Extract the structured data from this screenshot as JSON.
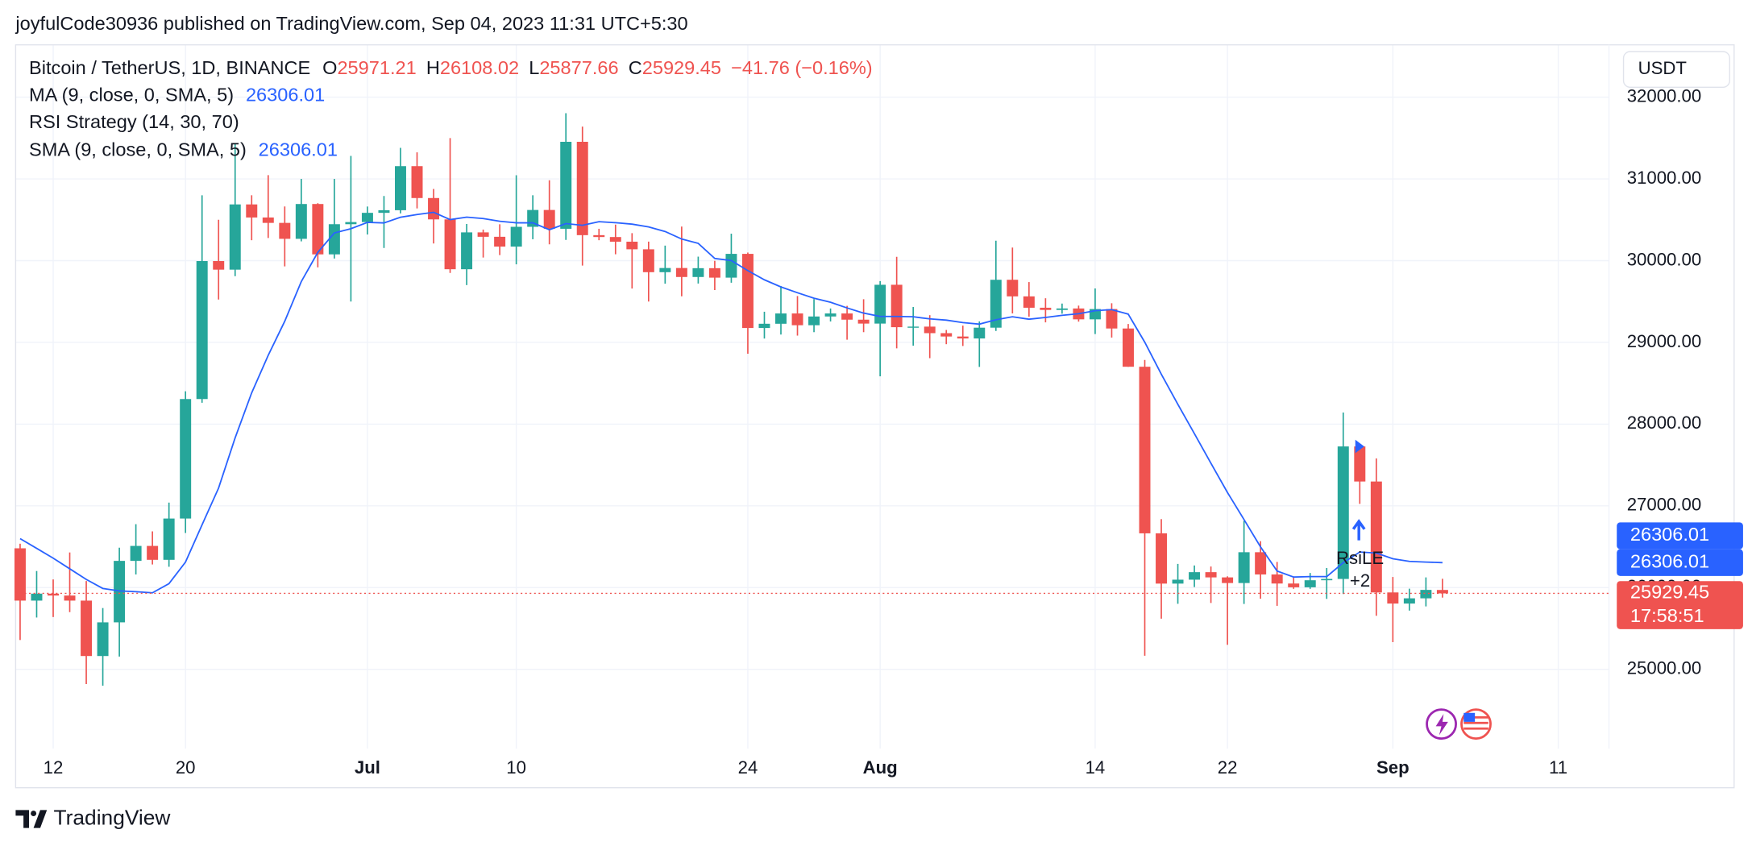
{
  "chart_data": {
    "type": "candlestick",
    "header": "joyfulCode30936 published on TradingView.com, Sep 04, 2023 11:31 UTC+5:30",
    "symbol": "Bitcoin / TetherUS, 1D, BINANCE",
    "ohlc_letters": [
      "O",
      "H",
      "L",
      "C"
    ],
    "change": "−41.76 (−0.16%)",
    "currency": "USDT",
    "countdown": "17:58:51",
    "brand": "TradingView",
    "up_color": "#26a69a",
    "down_color": "#ef5350",
    "x": [
      "2023-06-10",
      "2023-06-11",
      "2023-06-12",
      "2023-06-13",
      "2023-06-14",
      "2023-06-15",
      "2023-06-16",
      "2023-06-17",
      "2023-06-18",
      "2023-06-19",
      "2023-06-20",
      "2023-06-21",
      "2023-06-22",
      "2023-06-23",
      "2023-06-24",
      "2023-06-25",
      "2023-06-26",
      "2023-06-27",
      "2023-06-28",
      "2023-06-29",
      "2023-06-30",
      "2023-07-01",
      "2023-07-02",
      "2023-07-03",
      "2023-07-04",
      "2023-07-05",
      "2023-07-06",
      "2023-07-07",
      "2023-07-08",
      "2023-07-09",
      "2023-07-10",
      "2023-07-11",
      "2023-07-12",
      "2023-07-13",
      "2023-07-14",
      "2023-07-15",
      "2023-07-16",
      "2023-07-17",
      "2023-07-18",
      "2023-07-19",
      "2023-07-20",
      "2023-07-21",
      "2023-07-22",
      "2023-07-23",
      "2023-07-24",
      "2023-07-25",
      "2023-07-26",
      "2023-07-27",
      "2023-07-28",
      "2023-07-29",
      "2023-07-30",
      "2023-07-31",
      "2023-08-01",
      "2023-08-02",
      "2023-08-03",
      "2023-08-04",
      "2023-08-05",
      "2023-08-06",
      "2023-08-07",
      "2023-08-08",
      "2023-08-09",
      "2023-08-10",
      "2023-08-11",
      "2023-08-12",
      "2023-08-13",
      "2023-08-14",
      "2023-08-15",
      "2023-08-16",
      "2023-08-17",
      "2023-08-18",
      "2023-08-19",
      "2023-08-20",
      "2023-08-21",
      "2023-08-22",
      "2023-08-23",
      "2023-08-24",
      "2023-08-25",
      "2023-08-26",
      "2023-08-27",
      "2023-08-28",
      "2023-08-29",
      "2023-08-30",
      "2023-08-31",
      "2023-09-01",
      "2023-09-02",
      "2023-09-03",
      "2023-09-04"
    ],
    "open": [
      26481,
      25841,
      25926,
      25903,
      25841,
      25163,
      25575,
      26327,
      26510,
      26340,
      26845,
      28307,
      29995,
      29890,
      30688,
      30528,
      30462,
      30267,
      30693,
      30077,
      30446,
      30472,
      30585,
      30617,
      31156,
      30766,
      30505,
      29895,
      30346,
      30292,
      30172,
      30414,
      30620,
      30390,
      31454,
      30312,
      30289,
      30232,
      30139,
      29859,
      29910,
      29800,
      29908,
      29792,
      30083,
      29176,
      29228,
      29354,
      29210,
      29317,
      29354,
      29278,
      29230,
      29705,
      29186,
      29193,
      29113,
      29072,
      29048,
      29180,
      29766,
      29563,
      29424,
      29397,
      29415,
      29282,
      29408,
      29170,
      28702,
      26664,
      26049,
      26097,
      26189,
      26125,
      26056,
      26433,
      26161,
      26050,
      26004,
      26090,
      26106,
      27727,
      27298,
      25941,
      25805,
      25869,
      25971.21
    ],
    "high": [
      26537,
      26203,
      26100,
      26430,
      26081,
      25750,
      26488,
      26776,
      26688,
      27040,
      28402,
      30800,
      30500,
      31432,
      30800,
      31046,
      30663,
      31000,
      30703,
      31000,
      31282,
      30662,
      30791,
      31380,
      31325,
      30877,
      31500,
      30449,
      30380,
      30445,
      31045,
      30800,
      30983,
      31804,
      31640,
      30390,
      30441,
      30336,
      30233,
      30184,
      30417,
      30049,
      29998,
      30330,
      30099,
      29375,
      29690,
      29567,
      29530,
      29415,
      29447,
      29528,
      29750,
      30047,
      29433,
      29333,
      29152,
      29205,
      29257,
      30244,
      30160,
      29738,
      29540,
      29475,
      29450,
      29660,
      29479,
      29225,
      28785,
      26838,
      26290,
      26271,
      26258,
      26138,
      26816,
      26568,
      26314,
      26125,
      26179,
      26240,
      28142,
      27760,
      27580,
      26130,
      25987,
      26125,
      26108.02
    ],
    "low": [
      25359,
      25634,
      25640,
      25700,
      24820,
      24800,
      25157,
      26161,
      26283,
      26255,
      26668,
      28261,
      29525,
      29810,
      30250,
      30277,
      29930,
      30236,
      29918,
      30026,
      29500,
      30320,
      30155,
      30578,
      30639,
      30210,
      29850,
      29701,
      30038,
      30068,
      29955,
      30262,
      30200,
      30254,
      29940,
      30250,
      30078,
      29659,
      29500,
      29718,
      29564,
      29720,
      29640,
      29730,
      28861,
      29047,
      29096,
      29083,
      29125,
      29256,
      29033,
      29125,
      28585,
      28927,
      28960,
      28807,
      28978,
      28956,
      28700,
      29140,
      29355,
      29315,
      29245,
      29351,
      29254,
      29102,
      29059,
      28701,
      25166,
      25620,
      25802,
      26007,
      25812,
      25300,
      25800,
      25864,
      25777,
      25985,
      25985,
      25862,
      25922,
      27025,
      25655,
      25333,
      25719,
      25770,
      25877.66
    ],
    "close": [
      25841,
      25926,
      25903,
      25841,
      25163,
      25575,
      26327,
      26510,
      26340,
      26845,
      28307,
      29995,
      29890,
      30688,
      30528,
      30462,
      30267,
      30693,
      30077,
      30446,
      30472,
      30585,
      30617,
      31156,
      30766,
      30505,
      29895,
      30346,
      30292,
      30172,
      30414,
      30620,
      30390,
      31454,
      30312,
      30289,
      30232,
      30139,
      29859,
      29910,
      29800,
      29908,
      29792,
      30083,
      29176,
      29228,
      29354,
      29210,
      29317,
      29354,
      29278,
      29230,
      29705,
      29186,
      29193,
      29113,
      29072,
      29048,
      29180,
      29766,
      29563,
      29424,
      29397,
      29415,
      29282,
      29408,
      29170,
      28702,
      26664,
      26049,
      26097,
      26189,
      26125,
      26056,
      26433,
      26161,
      26050,
      26004,
      26090,
      26106,
      27727,
      27298,
      25941,
      25805,
      25869,
      25972,
      25929.45
    ],
    "lines": [
      {
        "name": "MA (9, close, 0, SMA, 5)",
        "color": "#2962ff",
        "values": [
          26600,
          26480,
          26360,
          26230,
          26100,
          25990,
          25960,
          25950,
          25936,
          26048,
          26312,
          26767,
          27217,
          27831,
          28381,
          28841,
          29258,
          29742,
          30101,
          30338,
          30391,
          30469,
          30461,
          30531,
          30564,
          30591,
          30502,
          30532,
          30515,
          30482,
          30463,
          30463,
          30378,
          30454,
          30433,
          30477,
          30464,
          30447,
          30412,
          30356,
          30265,
          30211,
          30027,
          30001,
          29878,
          29766,
          29679,
          29607,
          29541,
          29491,
          29421,
          29359,
          29317,
          29318,
          29314,
          29287,
          29272,
          29242,
          29223,
          29277,
          29314,
          29283,
          29306,
          29331,
          29350,
          29387,
          29401,
          29347,
          29003,
          28612,
          28243,
          27886,
          27521,
          27162,
          26832,
          26497,
          26203,
          26129,
          26134,
          26135,
          26306,
          26436,
          26423,
          26354,
          26321,
          26312,
          26306.01
        ]
      }
    ],
    "indicators": [
      {
        "name": "RSI Strategy (14, 30, 70)"
      },
      {
        "name": "SMA (9, close, 0, SMA, 5)",
        "value": 26306.01
      }
    ],
    "signals": [
      {
        "label": "RsiLE",
        "count": "+2",
        "x": "2023-08-29"
      }
    ],
    "ylim": [
      24030,
      32640
    ],
    "yticks": [
      {
        "value": 25000,
        "label": "25000.00"
      },
      {
        "value": 26000,
        "label": "26000.00"
      },
      {
        "value": 27000,
        "label": "27000.00"
      },
      {
        "value": 28000,
        "label": "28000.00"
      },
      {
        "value": 29000,
        "label": "29000.00"
      },
      {
        "value": 30000,
        "label": "30000.00"
      },
      {
        "value": 31000,
        "label": "31000.00"
      },
      {
        "value": 32000,
        "label": "32000.00"
      }
    ],
    "xlim": [
      "2023-06-10",
      "2023-09-14"
    ],
    "xticks": [
      {
        "value": "2023-06-12",
        "label": "12"
      },
      {
        "value": "2023-06-20",
        "label": "20"
      },
      {
        "value": "2023-07-01",
        "label": "Jul"
      },
      {
        "value": "2023-07-10",
        "label": "10"
      },
      {
        "value": "2023-07-24",
        "label": "24"
      },
      {
        "value": "2023-08-01",
        "label": "Aug"
      },
      {
        "value": "2023-08-14",
        "label": "14"
      },
      {
        "value": "2023-08-22",
        "label": "22"
      },
      {
        "value": "2023-09-01",
        "label": "Sep"
      },
      {
        "value": "2023-09-11",
        "label": "11"
      }
    ],
    "grid": true
  }
}
